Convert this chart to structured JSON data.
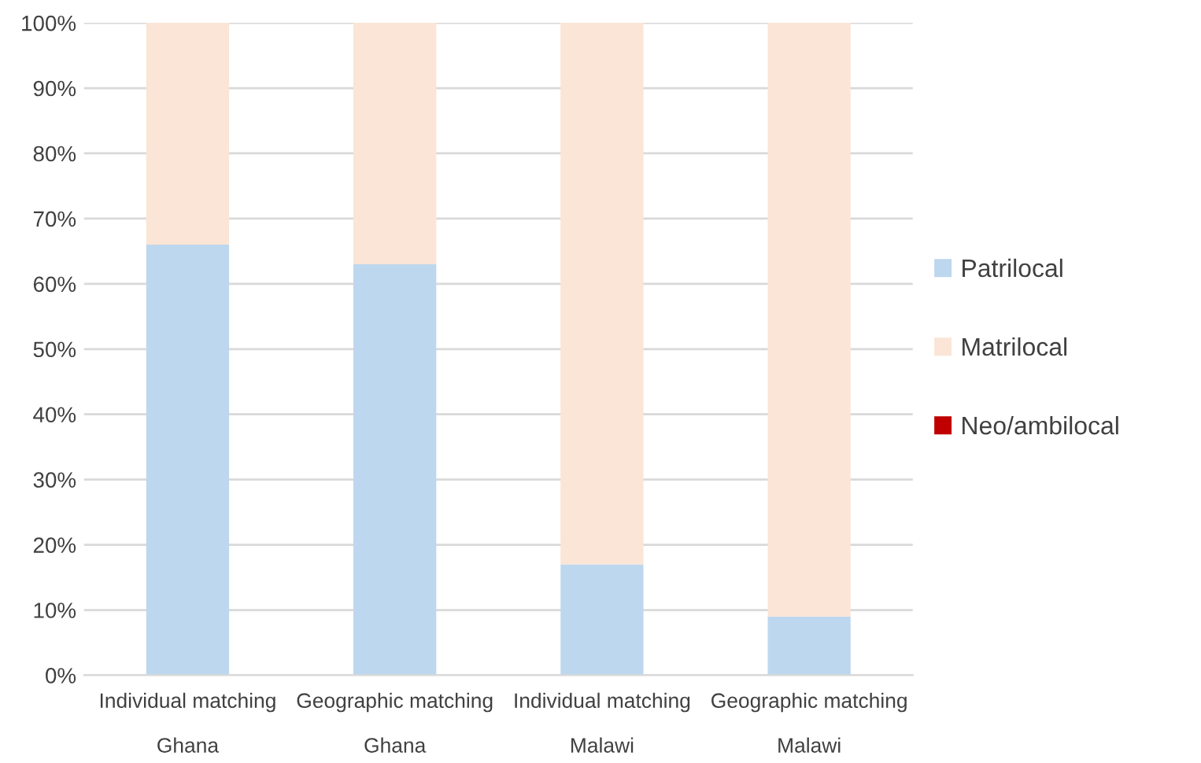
{
  "chart_data": {
    "type": "bar",
    "stacked": true,
    "categories": [
      "Individual matching\n\nGhana",
      "Geographic matching\n\nGhana",
      "Individual matching\n\nMalawi",
      "Geographic matching\n\nMalawi"
    ],
    "series": [
      {
        "name": "Patrilocal",
        "color": "#bdd7ee",
        "values": [
          66,
          63,
          17,
          9
        ]
      },
      {
        "name": "Matrilocal",
        "color": "#fbe5d6",
        "values": [
          34,
          37,
          83,
          91
        ]
      },
      {
        "name": "Neo/ambilocal",
        "color": "#c00000",
        "values": [
          0,
          0,
          0,
          0
        ]
      }
    ],
    "ylim": [
      0,
      100
    ],
    "yticks": [
      {
        "value": 0,
        "label": "0%"
      },
      {
        "value": 10,
        "label": "10%"
      },
      {
        "value": 20,
        "label": "20%"
      },
      {
        "value": 30,
        "label": "30%"
      },
      {
        "value": 40,
        "label": "40%"
      },
      {
        "value": 50,
        "label": "50%"
      },
      {
        "value": 60,
        "label": "60%"
      },
      {
        "value": 70,
        "label": "70%"
      },
      {
        "value": 80,
        "label": "80%"
      },
      {
        "value": 90,
        "label": "90%"
      },
      {
        "value": 100,
        "label": "100%"
      }
    ],
    "grid": "y",
    "legend": "right"
  }
}
